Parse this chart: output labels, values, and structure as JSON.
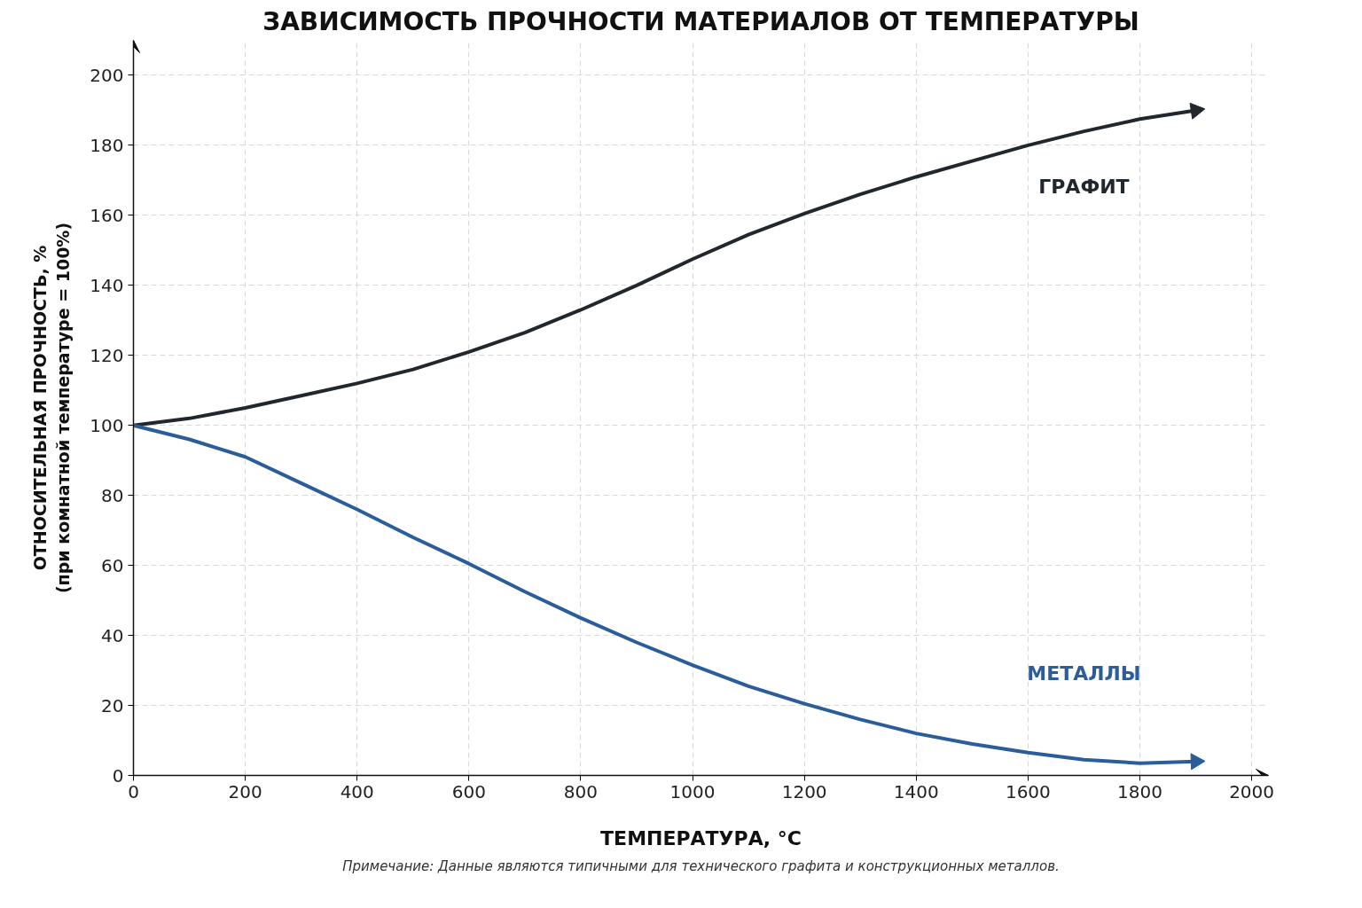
{
  "chart_data": {
    "type": "line",
    "title": "ЗАВИСИМОСТЬ ПРОЧНОСТИ МАТЕРИАЛОВ ОТ ТЕМПЕРАТУРЫ",
    "xlabel": "ТЕМПЕРАТУРА, °C",
    "ylabel": "ОТНОСИТЕЛЬНАЯ ПРОЧНОСТЬ, %\n(при комнатной температуре = 100%)",
    "x": [
      0,
      100,
      200,
      300,
      400,
      500,
      600,
      700,
      800,
      900,
      1000,
      1100,
      1200,
      1300,
      1400,
      1500,
      1600,
      1700,
      1800,
      1900
    ],
    "series": [
      {
        "name": "ГРАФИТ",
        "color": "#22272d",
        "values": [
          100,
          102,
          105,
          108.5,
          112,
          116,
          121,
          126.5,
          133,
          140,
          147.5,
          154.5,
          160.5,
          166,
          171,
          175.5,
          180,
          184,
          187.5,
          190
        ]
      },
      {
        "name": "МЕТАЛЛЫ",
        "color": "#2a5d9a",
        "values": [
          100,
          96,
          91,
          83.5,
          76,
          68,
          60.5,
          52.5,
          45,
          38,
          31.5,
          25.5,
          20.5,
          16,
          12,
          9,
          6.5,
          4.5,
          3.5,
          4
        ]
      }
    ],
    "xlim": [
      0,
      2030
    ],
    "ylim": [
      0,
      210
    ],
    "xticks": [
      0,
      200,
      400,
      600,
      800,
      1000,
      1200,
      1400,
      1600,
      1800,
      2000
    ],
    "yticks": [
      0,
      20,
      40,
      60,
      80,
      100,
      120,
      140,
      160,
      180,
      200
    ],
    "grid": true,
    "legend": false,
    "marker": "none",
    "line_style": "solid",
    "annotations": [
      "Примечание: Данные являются типичными для технического графита и конструкционных металлов."
    ]
  }
}
